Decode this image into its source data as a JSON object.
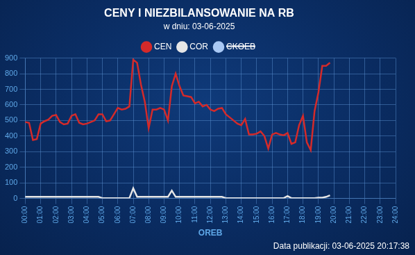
{
  "chart_data": {
    "type": "line",
    "title": "CENY I NIEZBILANSOWANIE NA RB",
    "subtitle": "w dniu: 03-06-2025",
    "x_label": "OREB",
    "annotation": "Data publikacji: 03-06-2025 20:17:38",
    "categories": [
      "00:00",
      null,
      null,
      null,
      "01:00",
      null,
      null,
      null,
      "02:00",
      null,
      null,
      null,
      "03:00",
      null,
      null,
      null,
      "04:00",
      null,
      null,
      null,
      "05:00",
      null,
      null,
      null,
      "06:00",
      null,
      null,
      null,
      "07:00",
      null,
      null,
      null,
      "08:00",
      null,
      null,
      null,
      "09:00",
      null,
      null,
      null,
      "10:00",
      null,
      null,
      null,
      "11:00",
      null,
      null,
      null,
      "12:00",
      null,
      null,
      null,
      "13:00",
      null,
      null,
      null,
      "14:00",
      null,
      null,
      null,
      "15:00",
      null,
      null,
      null,
      "16:00",
      null,
      null,
      null,
      "17:00",
      null,
      null,
      null,
      "18:00",
      null,
      null,
      null,
      "19:00",
      null,
      null,
      null,
      "20:00",
      null,
      null,
      null,
      "21:00",
      null,
      null,
      null,
      "22:00",
      null,
      null,
      null,
      "23:00",
      null,
      null,
      null,
      "24:00"
    ],
    "series": [
      {
        "name": "CEN",
        "color": "#d42a2a",
        "values": [
          490,
          485,
          375,
          380,
          480,
          495,
          505,
          530,
          535,
          490,
          475,
          480,
          530,
          540,
          485,
          475,
          480,
          490,
          500,
          540,
          540,
          495,
          500,
          540,
          580,
          570,
          575,
          590,
          890,
          870,
          730,
          620,
          450,
          570,
          570,
          580,
          570,
          500,
          720,
          800,
          720,
          660,
          655,
          650,
          610,
          620,
          590,
          600,
          570,
          560,
          575,
          580,
          540,
          520,
          500,
          480,
          470,
          510,
          410,
          410,
          415,
          430,
          400,
          320,
          410,
          420,
          410,
          405,
          420,
          350,
          360,
          470,
          530,
          360,
          310,
          560,
          680,
          850,
          850,
          870,
          null,
          null,
          null,
          null,
          null,
          null,
          null,
          null,
          null,
          null,
          null,
          null,
          null,
          null,
          null,
          null,
          null
        ]
      },
      {
        "name": "COR",
        "color": "#e6e6e6",
        "values": [
          10,
          10,
          10,
          10,
          10,
          10,
          10,
          10,
          10,
          10,
          10,
          10,
          10,
          10,
          10,
          10,
          10,
          10,
          10,
          10,
          2,
          2,
          2,
          2,
          2,
          2,
          2,
          2,
          65,
          10,
          10,
          10,
          10,
          10,
          10,
          10,
          10,
          10,
          50,
          10,
          10,
          10,
          10,
          10,
          10,
          10,
          10,
          10,
          10,
          10,
          10,
          10,
          2,
          2,
          2,
          2,
          2,
          2,
          2,
          2,
          2,
          2,
          2,
          2,
          2,
          2,
          2,
          2,
          15,
          2,
          2,
          2,
          2,
          2,
          2,
          2,
          5,
          5,
          10,
          20,
          null,
          null,
          null,
          null,
          null,
          null,
          null,
          null,
          null,
          null,
          null,
          null,
          null,
          null,
          null,
          null,
          null
        ]
      },
      {
        "name": "CKOEB",
        "color": "#a9c9f5",
        "values": [
          null,
          null,
          null,
          null,
          null,
          null,
          null,
          null,
          null,
          null,
          null,
          null,
          null,
          null,
          null,
          null,
          null,
          null,
          null,
          null,
          null,
          null,
          null,
          null,
          null,
          null,
          null,
          null,
          null,
          null,
          null,
          null,
          null,
          null,
          null,
          null,
          null,
          null,
          null,
          null,
          null,
          null,
          null,
          null,
          null,
          null,
          null,
          null,
          null,
          null,
          null,
          null,
          null,
          null,
          null,
          null,
          null,
          null,
          null,
          null,
          null,
          null,
          null,
          null,
          null,
          null,
          null,
          null,
          null,
          null,
          null,
          null,
          null,
          null,
          null,
          null,
          null,
          null,
          null,
          null,
          null,
          null,
          null,
          null,
          null,
          null,
          null,
          null,
          null,
          null,
          null,
          null,
          null,
          null,
          null,
          null,
          null
        ]
      }
    ],
    "ylim": [
      0,
      900
    ],
    "yticks": [
      0,
      100,
      200,
      300,
      400,
      500,
      600,
      700,
      800,
      900
    ],
    "grid": true,
    "legend": "top"
  }
}
